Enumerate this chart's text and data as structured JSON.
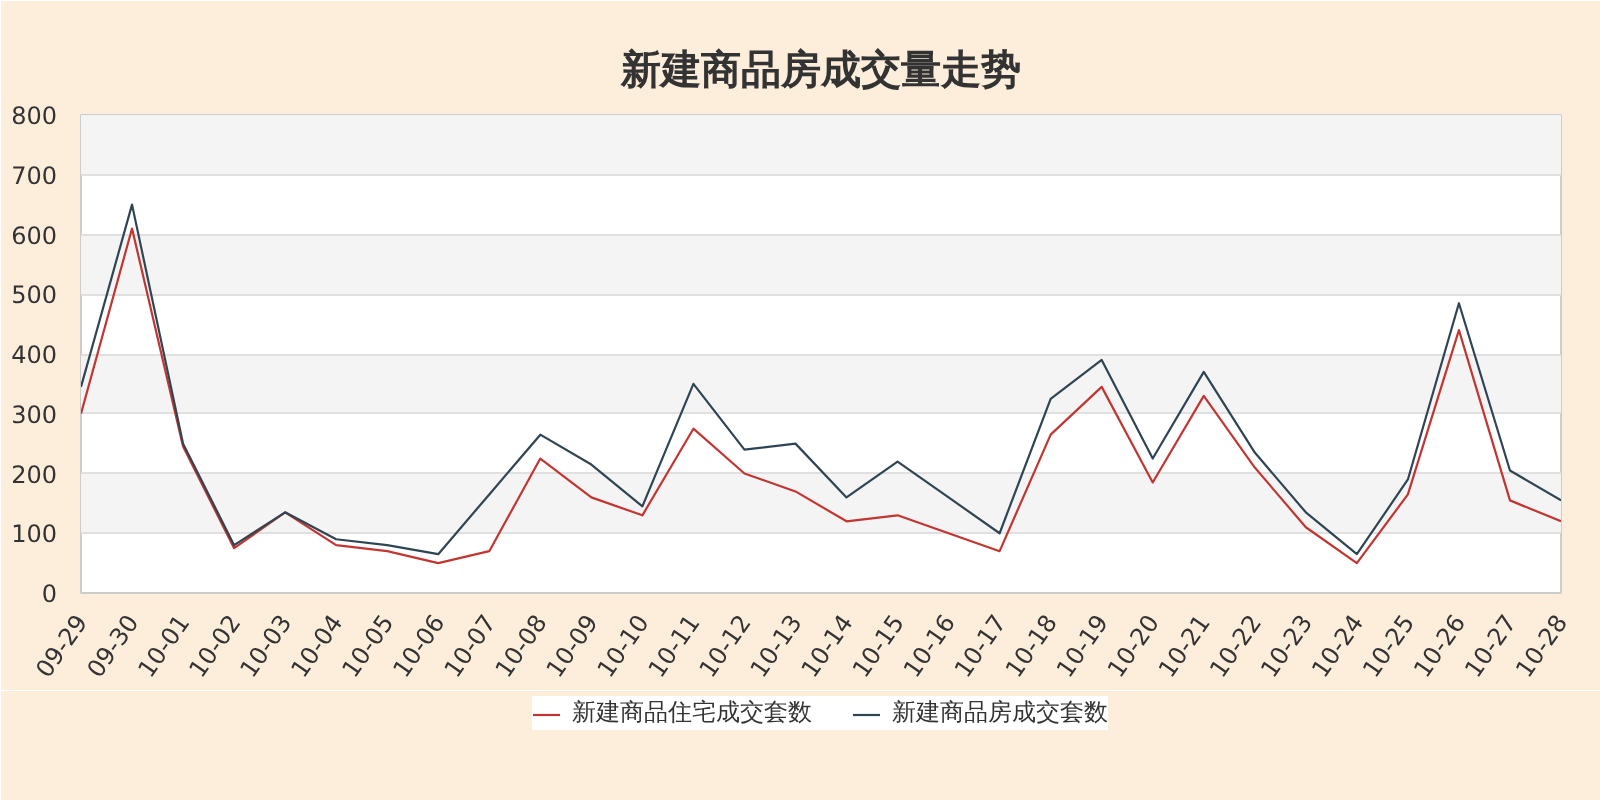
{
  "chart_data": {
    "type": "line",
    "title": "新建商品房成交量走势",
    "categories": [
      "09-29",
      "09-30",
      "10-01",
      "10-02",
      "10-03",
      "10-04",
      "10-05",
      "10-06",
      "10-07",
      "10-08",
      "10-09",
      "10-10",
      "10-11",
      "10-12",
      "10-13",
      "10-14",
      "10-15",
      "10-16",
      "10-17",
      "10-18",
      "10-19",
      "10-20",
      "10-21",
      "10-22",
      "10-23",
      "10-24",
      "10-25",
      "10-26",
      "10-27",
      "10-28"
    ],
    "series": [
      {
        "name": "新建商品住宅成交套数",
        "color": "#c23531",
        "values": [
          300,
          610,
          245,
          75,
          135,
          80,
          70,
          50,
          70,
          225,
          160,
          130,
          275,
          200,
          170,
          120,
          130,
          100,
          70,
          265,
          345,
          185,
          330,
          210,
          110,
          50,
          165,
          440,
          155,
          120
        ]
      },
      {
        "name": "新建商品房成交套数",
        "color": "#2f4554",
        "values": [
          345,
          650,
          250,
          80,
          135,
          90,
          80,
          65,
          165,
          265,
          215,
          145,
          350,
          240,
          250,
          160,
          220,
          160,
          100,
          325,
          390,
          225,
          370,
          235,
          135,
          65,
          190,
          485,
          205,
          155
        ]
      }
    ],
    "ylim": [
      0,
      800
    ],
    "yticks": [
      0,
      100,
      200,
      300,
      400,
      500,
      600,
      700,
      800
    ],
    "grid": "y",
    "legend": "bottom",
    "marker": "none",
    "line_style": "solid"
  }
}
